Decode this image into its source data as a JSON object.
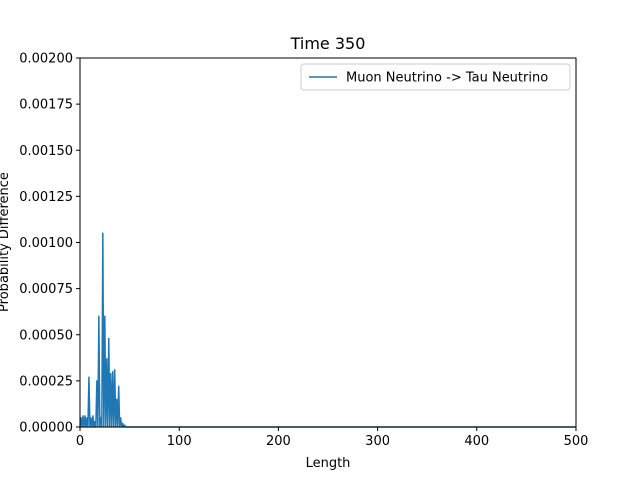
{
  "chart_data": {
    "type": "line",
    "title": "Time 350",
    "xlabel": "Length",
    "ylabel": "Probability Difference",
    "xlim": [
      0,
      500
    ],
    "ylim": [
      0,
      0.002
    ],
    "x_ticks": [
      "0",
      "100",
      "200",
      "300",
      "400",
      "500"
    ],
    "y_ticks": [
      "0.00000",
      "0.00025",
      "0.00050",
      "0.00075",
      "0.00100",
      "0.00125",
      "0.00150",
      "0.00175",
      "0.00200"
    ],
    "grid": false,
    "legend_position": "top-right",
    "series": [
      {
        "name": "Muon Neutrino -> Tau Neutrino",
        "color": "#1f77b4",
        "x": [
          0,
          1,
          2,
          3,
          4,
          5,
          6,
          7,
          8,
          9,
          10,
          11,
          12,
          13,
          14,
          15,
          16,
          17,
          18,
          19,
          20,
          21,
          22,
          23,
          24,
          25,
          26,
          27,
          28,
          29,
          30,
          31,
          32,
          33,
          34,
          35,
          36,
          37,
          38,
          39,
          40,
          41,
          42,
          43,
          44,
          45,
          46,
          47,
          48,
          49,
          50,
          60,
          100,
          200,
          300,
          400,
          500
        ],
        "y": [
          0,
          5e-05,
          0,
          6e-05,
          0,
          6e-05,
          0,
          5e-05,
          0,
          0.00027,
          0,
          5e-05,
          0,
          6e-05,
          0,
          3e-05,
          0,
          0.00025,
          0,
          0.0006,
          0,
          5e-05,
          0,
          0.00105,
          0,
          0.0006,
          0,
          0.00037,
          0,
          0.00048,
          0,
          0.00029,
          0,
          0.0003,
          0,
          0.00031,
          0,
          0.00015,
          0,
          0.00022,
          0,
          5e-05,
          0,
          2e-05,
          0,
          1e-05,
          0,
          0,
          0,
          0,
          0,
          0,
          0,
          0,
          0,
          0,
          0
        ]
      }
    ]
  }
}
